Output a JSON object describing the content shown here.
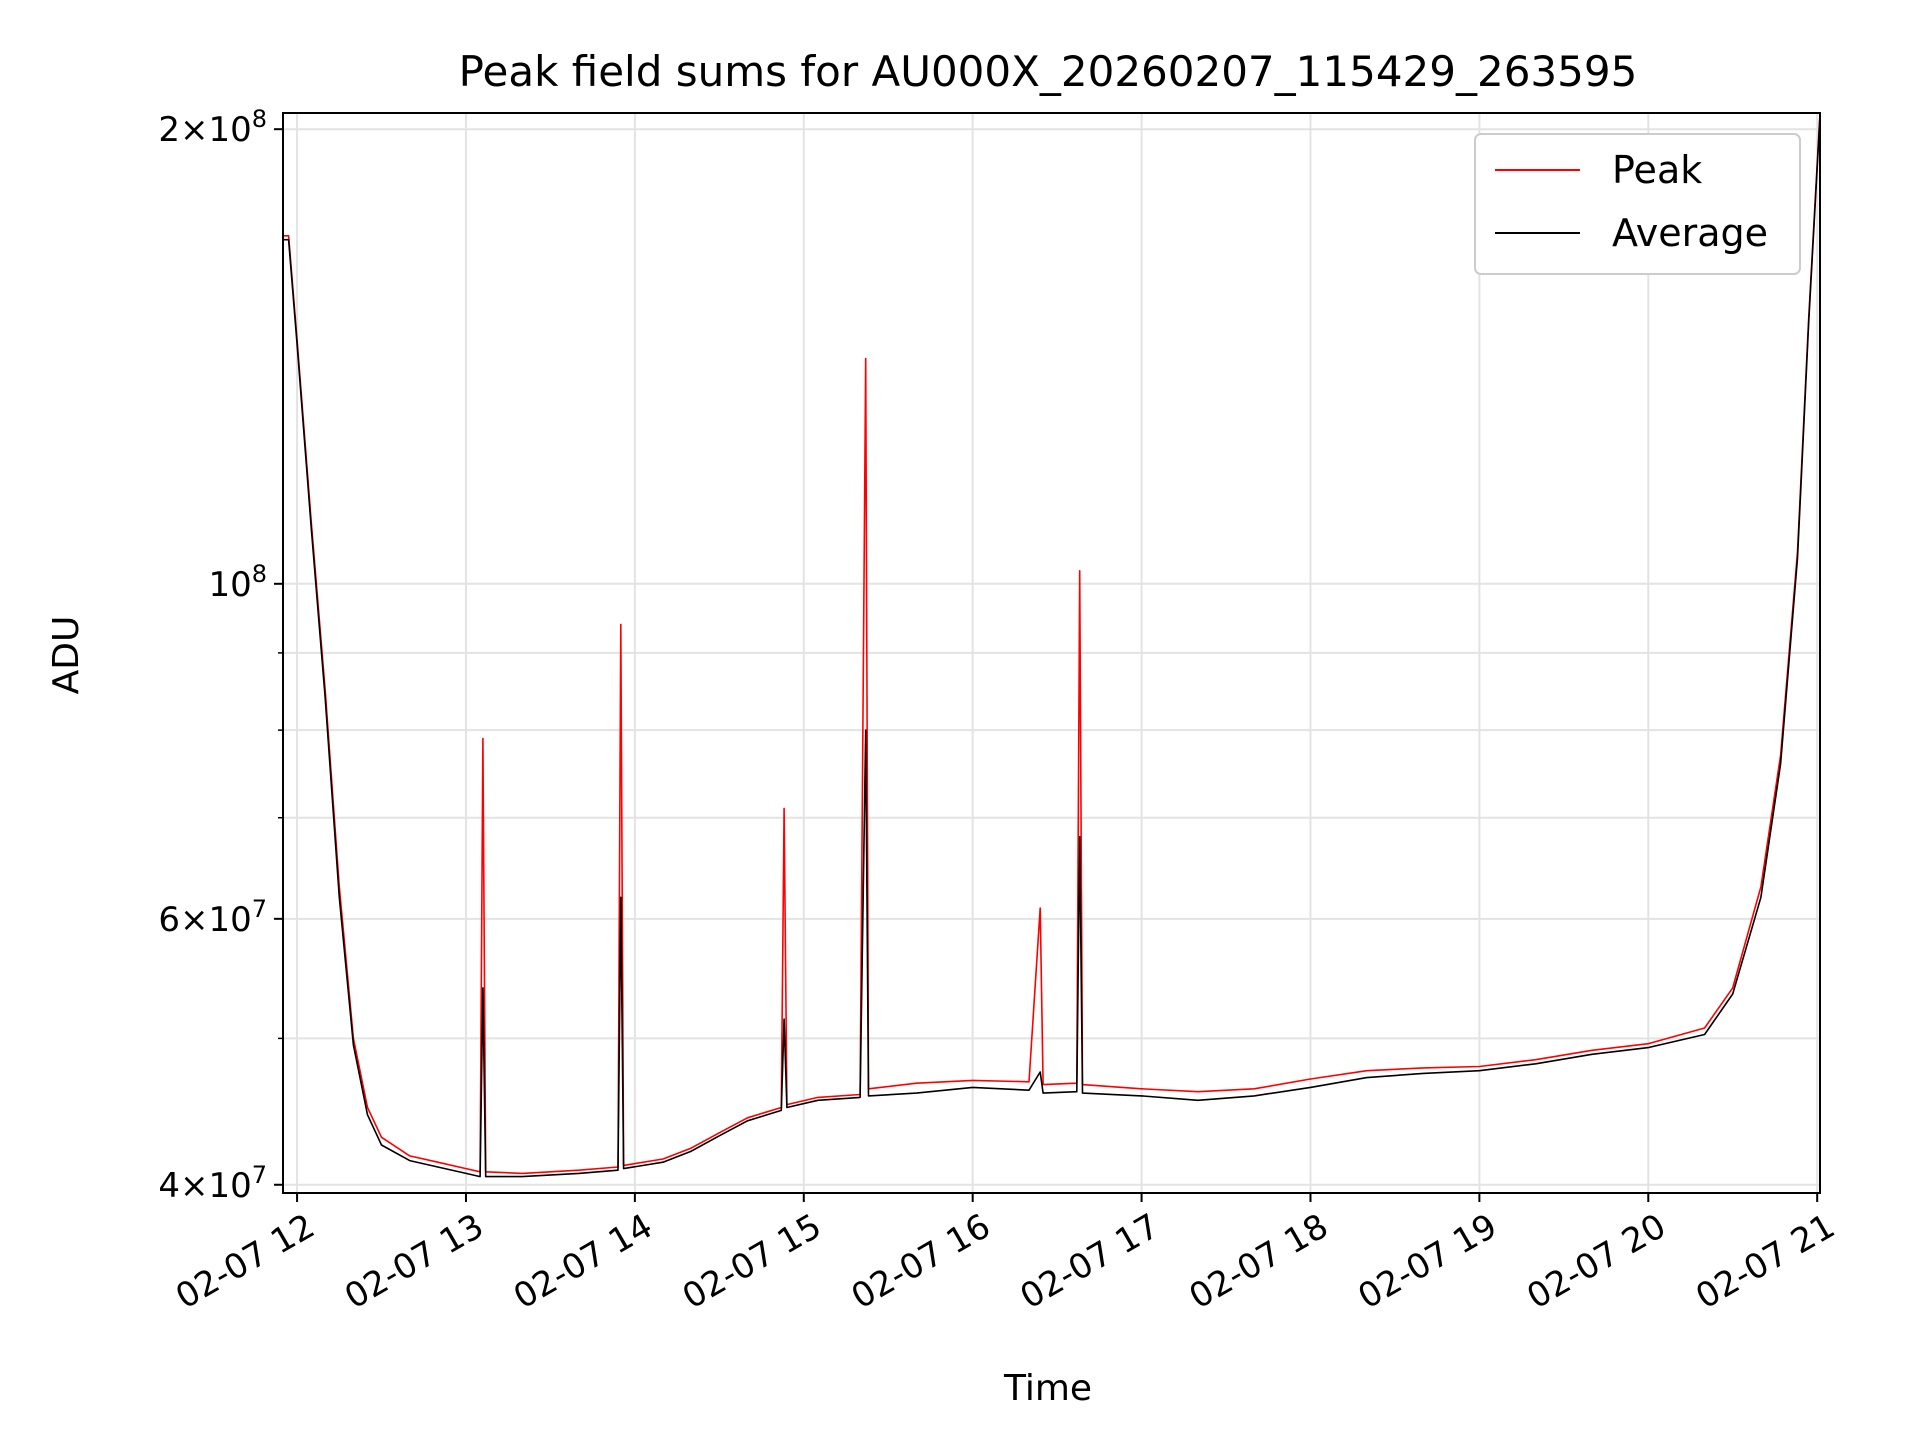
{
  "chart_data": {
    "type": "line",
    "title": "Peak field sums for AU000X_20260207_115429_263595",
    "xlabel": "Time",
    "ylabel": "ADU",
    "yscale": "log",
    "grid": true,
    "legend_position": "top-right",
    "xlim": [
      "2026-02-07 11:55",
      "2026-02-07 21:01"
    ],
    "ylim": [
      39500000,
      205000000
    ],
    "x_ticks": [
      {
        "value": "2026-02-07 12:00",
        "label": "02-07 12"
      },
      {
        "value": "2026-02-07 13:00",
        "label": "02-07 13"
      },
      {
        "value": "2026-02-07 14:00",
        "label": "02-07 14"
      },
      {
        "value": "2026-02-07 15:00",
        "label": "02-07 15"
      },
      {
        "value": "2026-02-07 16:00",
        "label": "02-07 16"
      },
      {
        "value": "2026-02-07 17:00",
        "label": "02-07 17"
      },
      {
        "value": "2026-02-07 18:00",
        "label": "02-07 18"
      },
      {
        "value": "2026-02-07 19:00",
        "label": "02-07 19"
      },
      {
        "value": "2026-02-07 20:00",
        "label": "02-07 20"
      },
      {
        "value": "2026-02-07 21:00",
        "label": "02-07 21"
      }
    ],
    "y_ticks_major": [
      {
        "value": 40000000,
        "base": "4×10",
        "exp": "7"
      },
      {
        "value": 60000000,
        "base": "6×10",
        "exp": "7"
      },
      {
        "value": 100000000,
        "base": "10",
        "exp": "8"
      },
      {
        "value": 200000000,
        "base": "2×10",
        "exp": "8"
      }
    ],
    "y_ticks_minor": [
      50000000,
      70000000,
      80000000,
      90000000
    ],
    "series": [
      {
        "name": "Peak",
        "color": "#ff0000",
        "points": [
          [
            "2026-02-07 11:55",
            170000000
          ],
          [
            "2026-02-07 11:57",
            170000000
          ],
          [
            "2026-02-07 12:00",
            145000000
          ],
          [
            "2026-02-07 12:05",
            110000000
          ],
          [
            "2026-02-07 12:10",
            85000000
          ],
          [
            "2026-02-07 12:15",
            63000000
          ],
          [
            "2026-02-07 12:20",
            50000000
          ],
          [
            "2026-02-07 12:25",
            45000000
          ],
          [
            "2026-02-07 12:30",
            43000000
          ],
          [
            "2026-02-07 12:40",
            41800000
          ],
          [
            "2026-02-07 12:50",
            41400000
          ],
          [
            "2026-02-07 13:00",
            41000000
          ],
          [
            "2026-02-07 13:05",
            40800000
          ],
          [
            "2026-02-07 13:06",
            79000000
          ],
          [
            "2026-02-07 13:07",
            40800000
          ],
          [
            "2026-02-07 13:20",
            40700000
          ],
          [
            "2026-02-07 13:40",
            40900000
          ],
          [
            "2026-02-07 13:54",
            41100000
          ],
          [
            "2026-02-07 13:55",
            94000000
          ],
          [
            "2026-02-07 13:56",
            41200000
          ],
          [
            "2026-02-07 14:10",
            41600000
          ],
          [
            "2026-02-07 14:20",
            42300000
          ],
          [
            "2026-02-07 14:30",
            43300000
          ],
          [
            "2026-02-07 14:40",
            44300000
          ],
          [
            "2026-02-07 14:52",
            45000000
          ],
          [
            "2026-02-07 14:53",
            71000000
          ],
          [
            "2026-02-07 14:54",
            45200000
          ],
          [
            "2026-02-07 15:05",
            45700000
          ],
          [
            "2026-02-07 15:20",
            45900000
          ],
          [
            "2026-02-07 15:22",
            141000000
          ],
          [
            "2026-02-07 15:23",
            46300000
          ],
          [
            "2026-02-07 15:40",
            46700000
          ],
          [
            "2026-02-07 16:00",
            46900000
          ],
          [
            "2026-02-07 16:20",
            46800000
          ],
          [
            "2026-02-07 16:24",
            61000000
          ],
          [
            "2026-02-07 16:25",
            46600000
          ],
          [
            "2026-02-07 16:37",
            46700000
          ],
          [
            "2026-02-07 16:38",
            102000000
          ],
          [
            "2026-02-07 16:39",
            46600000
          ],
          [
            "2026-02-07 17:00",
            46300000
          ],
          [
            "2026-02-07 17:20",
            46100000
          ],
          [
            "2026-02-07 17:40",
            46300000
          ],
          [
            "2026-02-07 18:00",
            47000000
          ],
          [
            "2026-02-07 18:20",
            47600000
          ],
          [
            "2026-02-07 18:40",
            47800000
          ],
          [
            "2026-02-07 19:00",
            47900000
          ],
          [
            "2026-02-07 19:20",
            48400000
          ],
          [
            "2026-02-07 19:40",
            49100000
          ],
          [
            "2026-02-07 20:00",
            49600000
          ],
          [
            "2026-02-07 20:20",
            50800000
          ],
          [
            "2026-02-07 20:30",
            54000000
          ],
          [
            "2026-02-07 20:40",
            63000000
          ],
          [
            "2026-02-07 20:47",
            77000000
          ],
          [
            "2026-02-07 20:53",
            105000000
          ],
          [
            "2026-02-07 20:57",
            150000000
          ],
          [
            "2026-02-07 21:01",
            205000000
          ]
        ]
      },
      {
        "name": "Average",
        "color": "#000000",
        "points": [
          [
            "2026-02-07 11:55",
            169000000
          ],
          [
            "2026-02-07 11:57",
            169000000
          ],
          [
            "2026-02-07 12:00",
            144000000
          ],
          [
            "2026-02-07 12:05",
            109000000
          ],
          [
            "2026-02-07 12:10",
            84000000
          ],
          [
            "2026-02-07 12:15",
            62000000
          ],
          [
            "2026-02-07 12:20",
            49500000
          ],
          [
            "2026-02-07 12:25",
            44500000
          ],
          [
            "2026-02-07 12:30",
            42500000
          ],
          [
            "2026-02-07 12:40",
            41500000
          ],
          [
            "2026-02-07 12:50",
            41100000
          ],
          [
            "2026-02-07 13:00",
            40700000
          ],
          [
            "2026-02-07 13:05",
            40500000
          ],
          [
            "2026-02-07 13:06",
            54000000
          ],
          [
            "2026-02-07 13:07",
            40500000
          ],
          [
            "2026-02-07 13:20",
            40500000
          ],
          [
            "2026-02-07 13:40",
            40700000
          ],
          [
            "2026-02-07 13:54",
            40900000
          ],
          [
            "2026-02-07 13:55",
            62000000
          ],
          [
            "2026-02-07 13:56",
            41000000
          ],
          [
            "2026-02-07 14:10",
            41400000
          ],
          [
            "2026-02-07 14:20",
            42100000
          ],
          [
            "2026-02-07 14:30",
            43100000
          ],
          [
            "2026-02-07 14:40",
            44100000
          ],
          [
            "2026-02-07 14:52",
            44800000
          ],
          [
            "2026-02-07 14:53",
            51500000
          ],
          [
            "2026-02-07 14:54",
            45000000
          ],
          [
            "2026-02-07 15:05",
            45500000
          ],
          [
            "2026-02-07 15:20",
            45700000
          ],
          [
            "2026-02-07 15:22",
            80000000
          ],
          [
            "2026-02-07 15:23",
            45800000
          ],
          [
            "2026-02-07 15:40",
            46000000
          ],
          [
            "2026-02-07 16:00",
            46400000
          ],
          [
            "2026-02-07 16:20",
            46200000
          ],
          [
            "2026-02-07 16:24",
            47500000
          ],
          [
            "2026-02-07 16:25",
            46000000
          ],
          [
            "2026-02-07 16:37",
            46100000
          ],
          [
            "2026-02-07 16:38",
            68000000
          ],
          [
            "2026-02-07 16:39",
            46000000
          ],
          [
            "2026-02-07 17:00",
            45800000
          ],
          [
            "2026-02-07 17:20",
            45500000
          ],
          [
            "2026-02-07 17:40",
            45800000
          ],
          [
            "2026-02-07 18:00",
            46400000
          ],
          [
            "2026-02-07 18:20",
            47100000
          ],
          [
            "2026-02-07 18:40",
            47400000
          ],
          [
            "2026-02-07 19:00",
            47600000
          ],
          [
            "2026-02-07 19:20",
            48100000
          ],
          [
            "2026-02-07 19:40",
            48800000
          ],
          [
            "2026-02-07 20:00",
            49300000
          ],
          [
            "2026-02-07 20:20",
            50300000
          ],
          [
            "2026-02-07 20:30",
            53500000
          ],
          [
            "2026-02-07 20:40",
            62000000
          ],
          [
            "2026-02-07 20:47",
            76000000
          ],
          [
            "2026-02-07 20:53",
            104000000
          ],
          [
            "2026-02-07 20:57",
            149000000
          ],
          [
            "2026-02-07 21:01",
            204000000
          ]
        ]
      }
    ]
  }
}
